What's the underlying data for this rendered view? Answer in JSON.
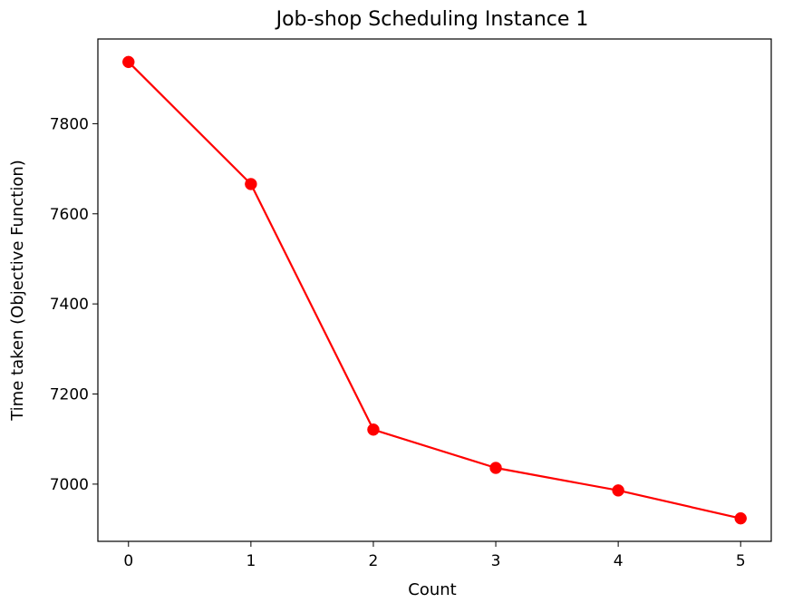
{
  "chart_data": {
    "type": "line",
    "title": "Job-shop Scheduling Instance 1",
    "xlabel": "Count",
    "ylabel": "Time taken (Objective Function)",
    "x": [
      0,
      1,
      2,
      3,
      4,
      5
    ],
    "series": [
      {
        "name": "Time taken",
        "values": [
          7937,
          7666,
          7121,
          7036,
          6986,
          6924
        ]
      }
    ],
    "xlim": [
      -0.25,
      5.25
    ],
    "ylim": [
      6873,
      7988
    ],
    "xticks": [
      0,
      1,
      2,
      3,
      4,
      5
    ],
    "yticks": [
      7000,
      7200,
      7400,
      7600,
      7800
    ],
    "grid": false,
    "colors": {
      "line": "#ff0000",
      "marker": "#ff0000",
      "axes": "#000000",
      "background": "#ffffff"
    }
  }
}
